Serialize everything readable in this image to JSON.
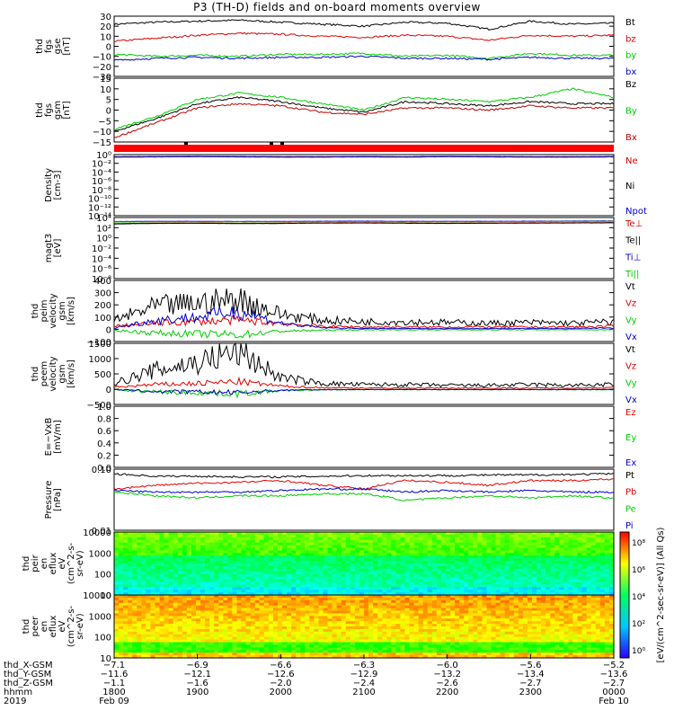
{
  "title": "P3 (TH-D) fields and on-board moments overview",
  "chart_data": [
    {
      "id": "fgs_gse",
      "type": "line",
      "ylabel": [
        "thd",
        "fgs",
        "gse",
        "[nT]"
      ],
      "ylim": [
        -30,
        30
      ],
      "yticks": [
        "30",
        "20",
        "10",
        "0",
        "−10",
        "−20",
        "−30"
      ],
      "series": [
        {
          "name": "Bt",
          "color": "#000000",
          "values": [
            22,
            24,
            25,
            26,
            24,
            22,
            20,
            24,
            23,
            17,
            25,
            22,
            23
          ]
        },
        {
          "name": "bz",
          "color": "#e00000",
          "values": [
            5,
            8,
            11,
            13,
            12,
            10,
            9,
            11,
            10,
            6,
            11,
            10,
            11
          ]
        },
        {
          "name": "by",
          "color": "#00cc00",
          "values": [
            -8,
            -10,
            -9,
            -10,
            -8,
            -8,
            -7,
            -10,
            -9,
            -12,
            -7,
            -9,
            -9
          ]
        },
        {
          "name": "bx",
          "color": "#0000cc",
          "values": [
            -14,
            -12,
            -11,
            -12,
            -11,
            -11,
            -10,
            -12,
            -12,
            -13,
            -11,
            -12,
            -12
          ]
        }
      ]
    },
    {
      "id": "fgs_gsm",
      "type": "line",
      "ylabel": [
        "thd",
        "fgs",
        "gsm",
        "[nT]"
      ],
      "ylim": [
        -15,
        15
      ],
      "yticks": [
        "15",
        "10",
        "5",
        "0",
        "−5",
        "−10",
        "−15"
      ],
      "series": [
        {
          "name": "Bz",
          "color": "#000000",
          "values": [
            -10,
            -4,
            3,
            6,
            4,
            1,
            -1,
            4,
            3,
            2,
            4,
            3,
            3
          ]
        },
        {
          "name": "By",
          "color": "#00cc00",
          "values": [
            -9,
            -3,
            5,
            8,
            6,
            3,
            0,
            6,
            5,
            4,
            6,
            10,
            6
          ]
        },
        {
          "name": "Bx",
          "color": "#c00000",
          "values": [
            -13,
            -6,
            1,
            3,
            2,
            -1,
            -2,
            1,
            1,
            0,
            2,
            1,
            1
          ]
        }
      ]
    },
    {
      "id": "density",
      "type": "line",
      "scale": "log",
      "ylabel": [
        "Density",
        "[cm-3]"
      ],
      "yticks": [
        "10⁰",
        "10⁻²",
        "10⁻⁴",
        "10⁻⁶",
        "10⁻⁸",
        "10⁻¹⁰",
        "10⁻¹²",
        "10⁻¹⁴"
      ],
      "series": [
        {
          "name": "Ne",
          "color": "#e00000",
          "values": [
            1.0,
            1.1,
            1.2,
            1.1,
            1.0,
            1.0,
            1.1,
            1.0,
            1.2,
            1.1,
            1.0,
            1.0,
            1.1
          ]
        },
        {
          "name": "Ni",
          "color": "#000000",
          "values": [
            0.9,
            1.0,
            1.1,
            1.0,
            0.9,
            0.9,
            1.0,
            0.9,
            1.1,
            1.0,
            0.9,
            0.9,
            1.0
          ]
        },
        {
          "name": "Npot",
          "color": "#0000cc",
          "values": [
            0.8,
            0.9,
            1.0,
            0.9,
            0.8,
            0.8,
            0.9,
            0.8,
            1.0,
            0.9,
            0.8,
            0.8,
            0.9
          ]
        }
      ]
    },
    {
      "id": "temperature",
      "type": "line",
      "scale": "log",
      "ylabel": [
        "magt3",
        "[eV]"
      ],
      "yticks": [
        "10⁴",
        "10²",
        "10⁰",
        "10⁻²",
        "10⁻⁴",
        "10⁻⁶",
        "10⁻⁸"
      ],
      "series": [
        {
          "name": "Te⊥",
          "color": "#e00000",
          "values": [
            1200,
            1500,
            1600,
            1400,
            1500,
            1700,
            1800,
            1600,
            1500,
            1600,
            1700,
            1800,
            1900
          ]
        },
        {
          "name": "Te||",
          "color": "#000000",
          "values": [
            1000,
            1300,
            1400,
            1200,
            1300,
            1500,
            1600,
            1400,
            1300,
            1400,
            1500,
            1600,
            1700
          ]
        },
        {
          "name": "Ti⊥",
          "color": "#0000cc",
          "values": [
            3000,
            3500,
            3400,
            3200,
            3300,
            3600,
            3700,
            3500,
            3400,
            3500,
            3600,
            3800,
            3900
          ]
        },
        {
          "name": "Ti||",
          "color": "#00cc00",
          "values": [
            2500,
            2800,
            2900,
            2700,
            2800,
            3000,
            3100,
            2900,
            2800,
            3000,
            3100,
            3200,
            3300
          ]
        }
      ]
    },
    {
      "id": "peim_velocity",
      "type": "line",
      "ylabel": [
        "thd",
        "peim",
        "velocity",
        "gsm",
        "[km/s]"
      ],
      "ylim": [
        -100,
        400
      ],
      "yticks": [
        "400",
        "300",
        "200",
        "100",
        "0",
        "−100"
      ],
      "series": [
        {
          "name": "Vt",
          "color": "#000000",
          "values": [
            60,
            150,
            170,
            200,
            100,
            60,
            50,
            50,
            45,
            40,
            45,
            40,
            50
          ]
        },
        {
          "name": "Vz",
          "color": "#e00000",
          "values": [
            20,
            40,
            50,
            60,
            40,
            20,
            15,
            15,
            15,
            15,
            15,
            15,
            20
          ]
        },
        {
          "name": "Vy",
          "color": "#00cc00",
          "values": [
            -10,
            -40,
            -50,
            -60,
            -20,
            -10,
            -5,
            -5,
            -5,
            -5,
            -5,
            -5,
            -5
          ]
        },
        {
          "name": "Vx",
          "color": "#0000cc",
          "values": [
            10,
            60,
            80,
            120,
            40,
            10,
            5,
            5,
            5,
            5,
            5,
            5,
            10
          ]
        }
      ]
    },
    {
      "id": "peem_velocity",
      "type": "line",
      "ylabel": [
        "thd",
        "peem",
        "velocity",
        "gsm",
        "[km/s]"
      ],
      "ylim": [
        -500,
        1500
      ],
      "yticks": [
        "1500",
        "1000",
        "500",
        "0",
        "−500"
      ],
      "series": [
        {
          "name": "Vt",
          "color": "#000000",
          "values": [
            150,
            500,
            700,
            1000,
            300,
            150,
            120,
            120,
            100,
            100,
            120,
            100,
            120
          ]
        },
        {
          "name": "Vz",
          "color": "#e00000",
          "values": [
            50,
            120,
            150,
            200,
            80,
            40,
            30,
            30,
            30,
            30,
            30,
            30,
            40
          ]
        },
        {
          "name": "Vy",
          "color": "#00cc00",
          "values": [
            -30,
            -120,
            -150,
            -200,
            -60,
            -30,
            -20,
            -20,
            -20,
            -20,
            -20,
            -20,
            -20
          ]
        },
        {
          "name": "Vx",
          "color": "#0000cc",
          "values": [
            -20,
            -100,
            -120,
            -150,
            -50,
            -20,
            -15,
            -15,
            -15,
            -15,
            -15,
            -15,
            -15
          ]
        }
      ]
    },
    {
      "id": "efield",
      "type": "line",
      "ylabel": [
        "E=−VxB",
        "[mV/m]"
      ],
      "ylim": [
        0,
        1
      ],
      "yticks": [
        "1.0",
        "0.8",
        "0.6",
        "0.4",
        "0.2",
        "0.0"
      ],
      "series": [
        {
          "name": "Ez",
          "color": "#e00000",
          "values": []
        },
        {
          "name": "Ey",
          "color": "#00cc00",
          "values": []
        },
        {
          "name": "Ex",
          "color": "#0000cc",
          "values": []
        }
      ]
    },
    {
      "id": "pressure",
      "type": "line",
      "scale": "log",
      "ylabel": [
        "Pressure",
        "[nPa]"
      ],
      "yticks": [
        "0.10",
        "0.01"
      ],
      "series": [
        {
          "name": "Pt",
          "color": "#000000",
          "values": [
            0.3,
            0.26,
            0.26,
            0.25,
            0.25,
            0.26,
            0.27,
            0.27,
            0.27,
            0.28,
            0.28,
            0.29,
            0.3
          ]
        },
        {
          "name": "Pb",
          "color": "#e00000",
          "values": [
            0.12,
            0.15,
            0.17,
            0.18,
            0.2,
            0.15,
            0.12,
            0.2,
            0.18,
            0.15,
            0.2,
            0.2,
            0.22
          ]
        },
        {
          "name": "Pe",
          "color": "#00cc00",
          "values": [
            0.1,
            0.08,
            0.07,
            0.08,
            0.08,
            0.09,
            0.09,
            0.06,
            0.07,
            0.08,
            0.07,
            0.08,
            0.07
          ]
        },
        {
          "name": "Pi",
          "color": "#0000cc",
          "values": [
            0.11,
            0.1,
            0.1,
            0.1,
            0.11,
            0.12,
            0.12,
            0.1,
            0.11,
            0.1,
            0.11,
            0.1,
            0.1
          ]
        }
      ]
    },
    {
      "id": "peir_en_eflux",
      "type": "heatmap",
      "ylabel": [
        "thd",
        "peir",
        "en",
        "eflux",
        "eV",
        "(cm^2-s-",
        "sr-eV)"
      ],
      "yticks": [
        "10000",
        "1000",
        "100",
        "10"
      ]
    },
    {
      "id": "peer_en_eflux",
      "type": "heatmap",
      "ylabel": [
        "thd",
        "peer",
        "en",
        "eflux",
        "eV",
        "(cm^2-s-",
        "sr-eV)"
      ],
      "yticks": [
        "10000",
        "1000",
        "100",
        "10"
      ]
    }
  ],
  "colorbar": {
    "label": "[eV/(cm^2-sec-sr-eV)] (All Qs)",
    "ticks": [
      "10⁸",
      "10⁶",
      "10⁴",
      "10²",
      "10⁰"
    ]
  },
  "time_axis": {
    "rows": [
      {
        "name": "thd_X-GSM",
        "values": [
          "−7.1",
          "−6.9",
          "−6.6",
          "−6.3",
          "−6.0",
          "−5.6",
          "−5.2"
        ]
      },
      {
        "name": "thd_Y-GSM",
        "values": [
          "−11.6",
          "−12.1",
          "−12.6",
          "−12.9",
          "−13.2",
          "−13.4",
          "−13.6"
        ]
      },
      {
        "name": "thd_Z-GSM",
        "values": [
          "−1.1",
          "−1.6",
          "−2.0",
          "−2.4",
          "−2.6",
          "−2.7",
          "−2.7"
        ]
      },
      {
        "name": "hhmm",
        "values": [
          "1800",
          "1900",
          "2000",
          "2100",
          "2200",
          "2300",
          "0000"
        ]
      },
      {
        "name": "2019",
        "values": [
          "Feb 09",
          "",
          "",
          "",
          "",
          "",
          "Feb 10"
        ]
      }
    ]
  }
}
